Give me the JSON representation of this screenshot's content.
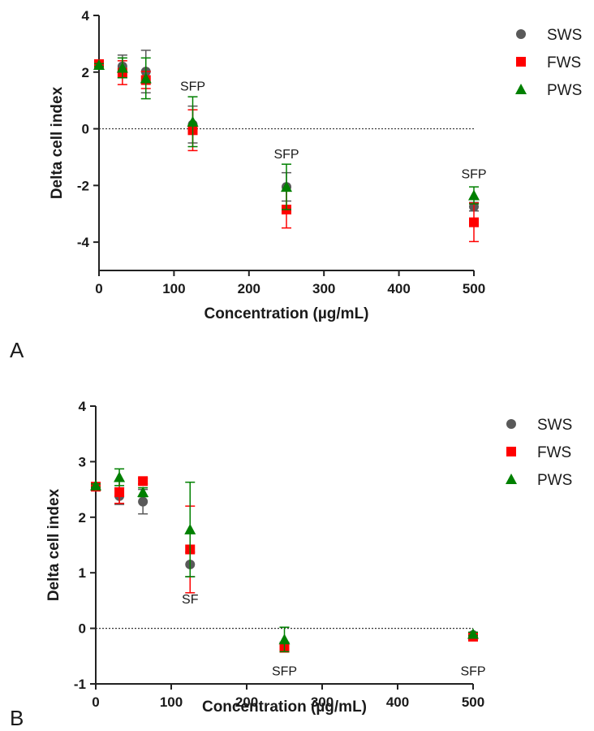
{
  "chart_data": [
    {
      "type": "scatter",
      "panel": "A",
      "xlabel": "Concentration (µg/mL)",
      "ylabel": "Delta cell index",
      "xlim": [
        0,
        500
      ],
      "ylim": [
        -5,
        4
      ],
      "xticks": [
        0,
        100,
        200,
        300,
        400,
        500
      ],
      "yticks": [
        -4,
        -2,
        0,
        2,
        4
      ],
      "reference_line": 0,
      "legend_position": "top-right",
      "series": [
        {
          "name": "SWS",
          "marker": "circle",
          "color": "#595959",
          "x": [
            0,
            31.25,
            62.5,
            125,
            250,
            500
          ],
          "y": [
            2.28,
            2.2,
            2.02,
            0.15,
            -2.05,
            -2.75
          ],
          "err": [
            0.05,
            0.4,
            0.75,
            0.65,
            0.5,
            0.15
          ]
        },
        {
          "name": "FWS",
          "marker": "square",
          "color": "#ff0000",
          "x": [
            0,
            31.25,
            62.5,
            125,
            250,
            500
          ],
          "y": [
            2.28,
            1.98,
            1.72,
            -0.05,
            -2.85,
            -3.3
          ],
          "err": [
            0.05,
            0.42,
            0.3,
            0.72,
            0.65,
            0.68
          ]
        },
        {
          "name": "PWS",
          "marker": "triangle",
          "color": "#008000",
          "x": [
            0,
            31.25,
            62.5,
            125,
            250,
            500
          ],
          "y": [
            2.25,
            2.15,
            1.78,
            0.25,
            -2.05,
            -2.35
          ],
          "err": [
            0.05,
            0.35,
            0.72,
            0.88,
            0.8,
            0.3
          ]
        }
      ],
      "annotations": [
        {
          "text": "SFP",
          "x": 125,
          "y": 1.35
        },
        {
          "text": "SFP",
          "x": 250,
          "y": -1.05
        },
        {
          "text": "SFP",
          "x": 500,
          "y": -1.75
        }
      ]
    },
    {
      "type": "scatter",
      "panel": "B",
      "xlabel": "Concentration (µg/mL)",
      "ylabel": "Delta cell index",
      "xlim": [
        0,
        500
      ],
      "ylim": [
        -1,
        4
      ],
      "xticks": [
        0,
        100,
        200,
        300,
        400,
        500
      ],
      "yticks": [
        -1,
        0,
        1,
        2,
        3,
        4
      ],
      "reference_line": 0,
      "legend_position": "top-right",
      "series": [
        {
          "name": "SWS",
          "marker": "circle",
          "color": "#595959",
          "x": [
            0,
            31.25,
            62.5,
            125,
            250,
            500
          ],
          "y": [
            2.55,
            2.38,
            2.28,
            1.15,
            -0.3,
            -0.12
          ],
          "err": [
            0.03,
            0.15,
            0.22,
            0.22,
            0.05,
            0.03
          ]
        },
        {
          "name": "FWS",
          "marker": "square",
          "color": "#ff0000",
          "x": [
            0,
            31.25,
            62.5,
            125,
            250,
            500
          ],
          "y": [
            2.55,
            2.45,
            2.65,
            1.42,
            -0.35,
            -0.15
          ],
          "err": [
            0.03,
            0.2,
            0.05,
            0.78,
            0.05,
            0.03
          ]
        },
        {
          "name": "PWS",
          "marker": "triangle",
          "color": "#008000",
          "x": [
            0,
            31.25,
            62.5,
            125,
            250,
            500
          ],
          "y": [
            2.57,
            2.72,
            2.45,
            1.78,
            -0.2,
            -0.1
          ],
          "err": [
            0.03,
            0.15,
            0.08,
            0.85,
            0.22,
            0.03
          ]
        }
      ],
      "annotations": [
        {
          "text": "SF",
          "x": 125,
          "y": 0.45
        },
        {
          "text": "SFP",
          "x": 250,
          "y": -0.85
        },
        {
          "text": "SFP",
          "x": 500,
          "y": -0.85
        }
      ]
    }
  ],
  "panels": [
    {
      "letter": "A"
    },
    {
      "letter": "B"
    }
  ]
}
